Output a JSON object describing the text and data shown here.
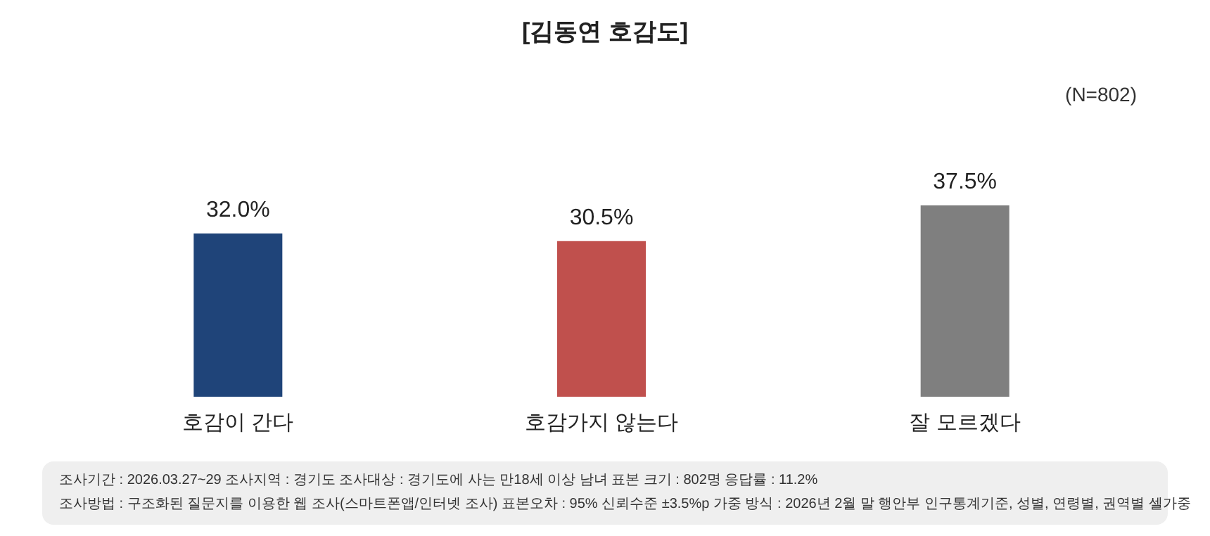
{
  "chart_data": {
    "type": "bar",
    "title": "[김동연 호감도]",
    "categories": [
      "호감이 간다",
      "호감가지 않는다",
      "잘 모르겠다"
    ],
    "values": [
      32.0,
      30.5,
      37.5
    ],
    "colors": [
      "#1f4479",
      "#c0504d",
      "#7f7f7f"
    ],
    "value_labels": [
      "32.0%",
      "30.5%",
      "37.5%"
    ],
    "annotations": [
      "(N=802)",
      "조사기간 : 2026.03.27~29    조사지역 : 경기도    조사대상 : 경기도에 사는 만18세 이상 남녀    표본 크기 : 802명    응답률 : 11.2%",
      "조사방법 : 구조화된 질문지를 이용한 웹 조사(스마트폰앱/인터넷 조사)    표본오차 : 95% 신뢰수준 ±3.5%p    가중 방식 : 2026년 2월 말 행안부 인구통계기준, 성별, 연령별, 권역별 셀가중"
    ]
  }
}
